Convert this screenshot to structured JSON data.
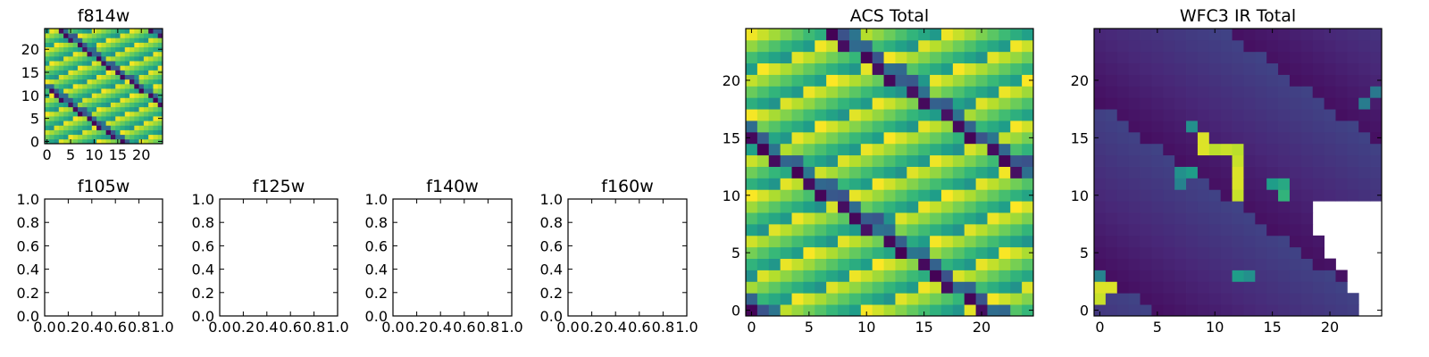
{
  "chart_data": [
    {
      "type": "heatmap",
      "title": "f814w",
      "xlim": [
        -0.5,
        24.5
      ],
      "ylim": [
        -0.5,
        24.5
      ],
      "xticks": [
        0,
        5,
        10,
        15,
        20
      ],
      "yticks": [
        0,
        5,
        10,
        15,
        20
      ],
      "grid": false,
      "colormap": "viridis",
      "pattern": "noise",
      "cells_shape": [
        25,
        25
      ]
    },
    {
      "type": "heatmap",
      "title": "f105w",
      "xlim": [
        0.0,
        1.0
      ],
      "ylim": [
        0.0,
        1.0
      ],
      "xticks": [
        "0.0",
        "0.2",
        "0.4",
        "0.6",
        "0.8",
        "1.0"
      ],
      "yticks": [
        "0.0",
        "0.2",
        "0.4",
        "0.6",
        "0.8",
        "1.0"
      ],
      "grid": false,
      "empty": true
    },
    {
      "type": "heatmap",
      "title": "f125w",
      "xlim": [
        0.0,
        1.0
      ],
      "ylim": [
        0.0,
        1.0
      ],
      "xticks": [
        "0.0",
        "0.2",
        "0.4",
        "0.6",
        "0.8",
        "1.0"
      ],
      "yticks": [
        "0.0",
        "0.2",
        "0.4",
        "0.6",
        "0.8",
        "1.0"
      ],
      "grid": false,
      "empty": true
    },
    {
      "type": "heatmap",
      "title": "f140w",
      "xlim": [
        0.0,
        1.0
      ],
      "ylim": [
        0.0,
        1.0
      ],
      "xticks": [
        "0.0",
        "0.2",
        "0.4",
        "0.6",
        "0.8",
        "1.0"
      ],
      "yticks": [
        "0.0",
        "0.2",
        "0.4",
        "0.6",
        "0.8",
        "1.0"
      ],
      "grid": false,
      "empty": true
    },
    {
      "type": "heatmap",
      "title": "f160w",
      "xlim": [
        0.0,
        1.0
      ],
      "ylim": [
        0.0,
        1.0
      ],
      "xticks": [
        "0.0",
        "0.2",
        "0.4",
        "0.6",
        "0.8",
        "1.0"
      ],
      "yticks": [
        "0.0",
        "0.2",
        "0.4",
        "0.6",
        "0.8",
        "1.0"
      ],
      "grid": false,
      "empty": true
    },
    {
      "type": "heatmap",
      "title": "ACS Total",
      "xlim": [
        -0.5,
        24.5
      ],
      "ylim": [
        -0.5,
        24.5
      ],
      "xticks": [
        0,
        5,
        10,
        15,
        20
      ],
      "yticks": [
        0,
        5,
        10,
        15,
        20
      ],
      "grid": false,
      "colormap": "viridis",
      "pattern": "noise",
      "cells_shape": [
        25,
        25
      ]
    },
    {
      "type": "heatmap",
      "title": "WFC3 IR Total",
      "xlim": [
        -0.5,
        24.5
      ],
      "ylim": [
        -0.5,
        24.5
      ],
      "xticks": [
        0,
        5,
        10,
        15,
        20
      ],
      "yticks": [
        0,
        5,
        10,
        15,
        20
      ],
      "grid": false,
      "colormap": "viridis",
      "pattern": "faint-source",
      "cells_shape": [
        25,
        25
      ],
      "bright_pixels": [
        {
          "x": 9,
          "y": 15,
          "value": 0.95
        },
        {
          "x": 9,
          "y": 14,
          "value": 0.95
        },
        {
          "x": 10,
          "y": 14,
          "value": 0.9
        },
        {
          "x": 11,
          "y": 14,
          "value": 0.92
        },
        {
          "x": 12,
          "y": 14,
          "value": 0.9
        },
        {
          "x": 12,
          "y": 13,
          "value": 0.92
        },
        {
          "x": 12,
          "y": 12,
          "value": 0.95
        },
        {
          "x": 12,
          "y": 11,
          "value": 0.95
        },
        {
          "x": 12,
          "y": 10,
          "value": 0.92
        },
        {
          "x": 0,
          "y": 2,
          "value": 0.95
        },
        {
          "x": 1,
          "y": 2,
          "value": 0.95
        },
        {
          "x": 0,
          "y": 1,
          "value": 0.92
        },
        {
          "x": 16,
          "y": 10,
          "value": 0.65
        },
        {
          "x": 16,
          "y": 11,
          "value": 0.6
        },
        {
          "x": 15,
          "y": 11,
          "value": 0.55
        },
        {
          "x": 7,
          "y": 12,
          "value": 0.5
        },
        {
          "x": 8,
          "y": 12,
          "value": 0.55
        },
        {
          "x": 7,
          "y": 11,
          "value": 0.45
        },
        {
          "x": 8,
          "y": 16,
          "value": 0.5
        },
        {
          "x": 12,
          "y": 3,
          "value": 0.55
        },
        {
          "x": 13,
          "y": 3,
          "value": 0.5
        },
        {
          "x": 23,
          "y": 18,
          "value": 0.42
        },
        {
          "x": 24,
          "y": 19,
          "value": 0.4
        },
        {
          "x": 0,
          "y": 3,
          "value": 0.45
        }
      ],
      "nan_region": "lower-right corner (no data)"
    }
  ]
}
